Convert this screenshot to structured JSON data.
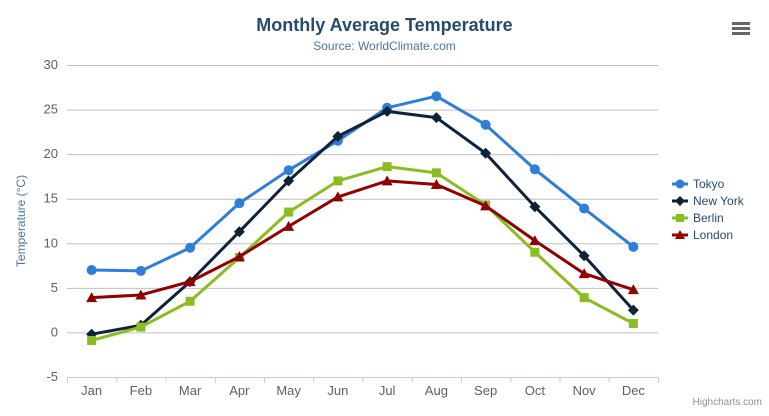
{
  "header": {
    "title": "Monthly Average Temperature",
    "subtitle": "Source: WorldClimate.com"
  },
  "credits": {
    "label": "Highcharts.com"
  },
  "export_menu": {
    "icon": "hamburger-menu-icon"
  },
  "chart_data": {
    "type": "line",
    "title": "Monthly Average Temperature",
    "subtitle": "Source: WorldClimate.com",
    "categories": [
      "Jan",
      "Feb",
      "Mar",
      "Apr",
      "May",
      "Jun",
      "Jul",
      "Aug",
      "Sep",
      "Oct",
      "Nov",
      "Dec"
    ],
    "series": [
      {
        "name": "Tokyo",
        "color": "#2f7ed8",
        "marker": "circle",
        "values": [
          7.0,
          6.9,
          9.5,
          14.5,
          18.2,
          21.5,
          25.2,
          26.5,
          23.3,
          18.3,
          13.9,
          9.6
        ]
      },
      {
        "name": "New York",
        "color": "#0d233a",
        "marker": "diamond",
        "values": [
          -0.2,
          0.8,
          5.7,
          11.3,
          17.0,
          22.0,
          24.8,
          24.1,
          20.1,
          14.1,
          8.6,
          2.5
        ]
      },
      {
        "name": "Berlin",
        "color": "#8bbc21",
        "marker": "square",
        "values": [
          -0.9,
          0.6,
          3.5,
          8.4,
          13.5,
          17.0,
          18.6,
          17.9,
          14.3,
          9.0,
          3.9,
          1.0
        ]
      },
      {
        "name": "London",
        "color": "#910000",
        "marker": "triangle",
        "values": [
          3.9,
          4.2,
          5.7,
          8.5,
          11.9,
          15.2,
          17.0,
          16.6,
          14.2,
          10.3,
          6.6,
          4.8
        ]
      }
    ],
    "xlabel": "",
    "ylabel": "Temperature (°C)",
    "ylim": [
      -5,
      30
    ],
    "yticks": [
      -5,
      0,
      5,
      10,
      15,
      20,
      25,
      30
    ],
    "grid": true,
    "legend_position": "right"
  },
  "colors": {
    "title": "#274b6d",
    "subtitle": "#4d759e",
    "axis_label": "#606060",
    "axis_title": "#4d759e",
    "grid_line": "#c0c0c0",
    "axis_line": "#c0d0e0",
    "legend_text": "#274b6d",
    "credits_text": "#909090",
    "menu_icon": "#666666"
  }
}
